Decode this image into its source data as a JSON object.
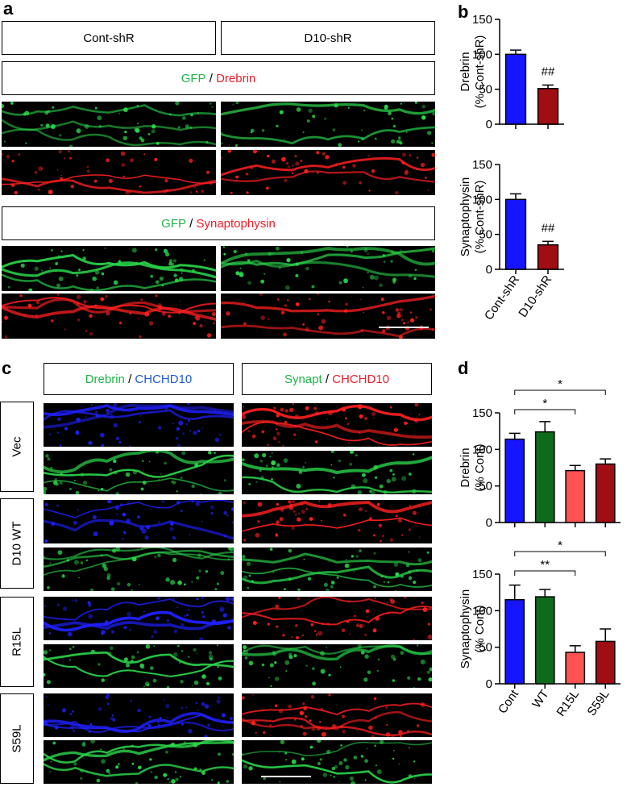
{
  "panels": {
    "a": {
      "label": "a",
      "headers": [
        "Cont-shR",
        "D10-shR"
      ],
      "stain1": {
        "green": "GFP",
        "sep": " / ",
        "red": "Drebrin"
      },
      "stain2": {
        "green": "GFP",
        "sep": " / ",
        "red": "Synaptophysin"
      }
    },
    "b": {
      "label": "b"
    },
    "c": {
      "label": "c",
      "col1": {
        "first": "Drebrin",
        "sep": " / ",
        "second": "CHCHD10"
      },
      "col2": {
        "first": "Synapt",
        "sep": " / ",
        "second": "CHCHD10"
      },
      "rows": [
        "Vec",
        "D10 WT",
        "R15L",
        "S59L"
      ]
    },
    "d": {
      "label": "d"
    }
  },
  "colors": {
    "green": "#20b34a",
    "red": "#e8202a",
    "blue": "#1e5bd6",
    "bar_blue": "#1515ff",
    "bar_darkred": "#a00d12",
    "bar_darkgreen": "#0f6b1c",
    "bar_lightred": "#ff5252"
  },
  "chart_data": [
    {
      "id": "b-drebrin",
      "type": "bar",
      "categories": [
        "Cont-shR",
        "D10-shR"
      ],
      "values": [
        100,
        51
      ],
      "errors": [
        6,
        5
      ],
      "ylim": [
        0,
        150
      ],
      "yticks": [
        0,
        50,
        100,
        150
      ],
      "ylabel": [
        "Drebrin",
        "(% Cont-shR)"
      ],
      "show_xlabels": false,
      "colors": [
        "#1515ff",
        "#a00d12"
      ],
      "annotations": [
        {
          "bar": 1,
          "text": "##"
        }
      ],
      "brackets": []
    },
    {
      "id": "b-synaptophysin",
      "type": "bar",
      "categories": [
        "Cont-shR",
        "D10-shR"
      ],
      "values": [
        100,
        35
      ],
      "errors": [
        8,
        5
      ],
      "ylim": [
        0,
        150
      ],
      "yticks": [
        0,
        50,
        100,
        150
      ],
      "ylabel": [
        "Synaptophysin",
        "(% Cont-shR)"
      ],
      "show_xlabels": true,
      "colors": [
        "#1515ff",
        "#a00d12"
      ],
      "annotations": [
        {
          "bar": 1,
          "text": "##"
        }
      ],
      "brackets": []
    },
    {
      "id": "d-drebrin",
      "type": "bar",
      "categories": [
        "Cont",
        "WT",
        "R15L",
        "S59L"
      ],
      "values": [
        114,
        124,
        71,
        80
      ],
      "errors": [
        8,
        14,
        7,
        7
      ],
      "ylim": [
        0,
        150
      ],
      "yticks": [
        0,
        50,
        100,
        150
      ],
      "ylabel": [
        "Drebrin",
        "(% Cont)"
      ],
      "show_xlabels": false,
      "colors": [
        "#1515ff",
        "#0f6b1c",
        "#ff5252",
        "#a00d12"
      ],
      "annotations": [],
      "brackets": [
        {
          "from": 0,
          "to": 3,
          "text": "*",
          "level": 2
        },
        {
          "from": 0,
          "to": 2,
          "text": "*",
          "level": 1
        }
      ]
    },
    {
      "id": "d-synaptophysin",
      "type": "bar",
      "categories": [
        "Cont",
        "WT",
        "R15L",
        "S59L"
      ],
      "values": [
        115,
        119,
        43,
        58
      ],
      "errors": [
        20,
        10,
        9,
        17
      ],
      "ylim": [
        0,
        150
      ],
      "yticks": [
        0,
        50,
        100,
        150
      ],
      "ylabel": [
        "Synaptophysin",
        "(% Cont)"
      ],
      "show_xlabels": true,
      "colors": [
        "#1515ff",
        "#0f6b1c",
        "#ff5252",
        "#a00d12"
      ],
      "annotations": [],
      "brackets": [
        {
          "from": 0,
          "to": 3,
          "text": "*",
          "level": 2
        },
        {
          "from": 0,
          "to": 2,
          "text": "**",
          "level": 1
        }
      ]
    }
  ]
}
